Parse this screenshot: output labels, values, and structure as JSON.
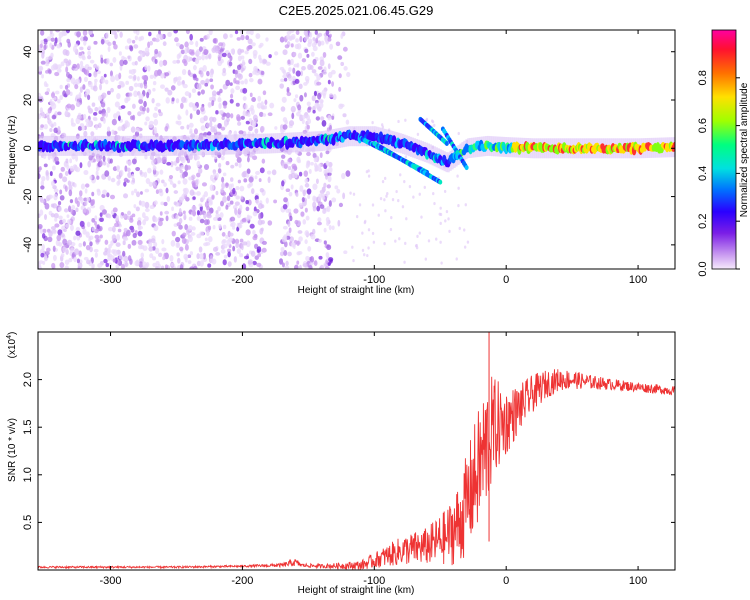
{
  "title": "C2E5.2025.021.06.45.G29",
  "chart_data": [
    {
      "type": "heatmap",
      "xlabel": "Height of straight line (km)",
      "ylabel": "Frequency (Hz)",
      "xlim": [
        -355,
        128
      ],
      "ylim": [
        -50,
        49
      ],
      "xticks": [
        -300,
        -200,
        -100,
        0,
        100
      ],
      "yticks": [
        -40,
        -20,
        0,
        20,
        40
      ],
      "colorbar": {
        "label": "Normalized spectral amplitude",
        "range": [
          0,
          1
        ],
        "ticks": [
          0.0,
          0.2,
          0.4,
          0.6,
          0.8
        ]
      },
      "ridge": {
        "description_points_x": [
          -355,
          -250,
          -180,
          -140,
          -120,
          -100,
          -80,
          -60,
          -45,
          -30,
          -15,
          0,
          20,
          60,
          100,
          128
        ],
        "frequency_hz": [
          1,
          1,
          2,
          3,
          5,
          5,
          2,
          -2,
          -6,
          0,
          1,
          0.5,
          0,
          0,
          0,
          0.5
        ]
      }
    },
    {
      "type": "line",
      "xlabel": "Height of straight line (km)",
      "ylabel": "SNR (10 * v/v)",
      "y_multiplier": "(x10^4)",
      "xlim": [
        -355,
        128
      ],
      "ylim": [
        0,
        2.5
      ],
      "xticks": [
        -300,
        -200,
        -100,
        0,
        100
      ],
      "yticks": [
        0.5,
        1.0,
        1.5,
        2.0
      ],
      "series": [
        {
          "color": "#ee3333",
          "x": [
            -355,
            -300,
            -250,
            -200,
            -170,
            -160,
            -155,
            -140,
            -110,
            -100,
            -80,
            -60,
            -45,
            -35,
            -25,
            -15,
            -10,
            0,
            10,
            20,
            30,
            40,
            50,
            60,
            80,
            100,
            115,
            128
          ],
          "mean": [
            0.03,
            0.03,
            0.03,
            0.04,
            0.05,
            0.08,
            0.05,
            0.04,
            0.05,
            0.1,
            0.2,
            0.25,
            0.35,
            0.5,
            0.9,
            1.3,
            1.5,
            1.55,
            1.7,
            1.85,
            1.95,
            2.0,
            2.0,
            1.98,
            1.95,
            1.92,
            1.9,
            1.88
          ],
          "spread": [
            0.01,
            0.01,
            0.01,
            0.01,
            0.02,
            0.04,
            0.02,
            0.02,
            0.05,
            0.08,
            0.15,
            0.2,
            0.3,
            0.45,
            0.6,
            0.7,
            0.55,
            0.35,
            0.25,
            0.2,
            0.15,
            0.12,
            0.1,
            0.08,
            0.06,
            0.05,
            0.05,
            0.05
          ],
          "peak": {
            "x": -13,
            "y": 2.5
          }
        }
      ]
    }
  ],
  "multiplier": {
    "base": "(x10",
    "exp": "4",
    "close": ")"
  }
}
